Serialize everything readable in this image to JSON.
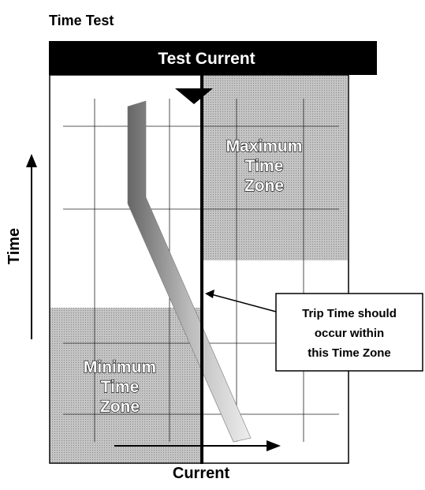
{
  "title": "Time Test",
  "header": "Test Current",
  "max_zone": [
    "Maximum",
    "Time",
    "Zone"
  ],
  "min_zone": [
    "Minimum",
    "Time",
    "Zone"
  ],
  "callout": [
    "Trip Time should",
    "occur within",
    "this Time Zone"
  ],
  "y_axis_label": "Time",
  "x_axis_label": "Current"
}
